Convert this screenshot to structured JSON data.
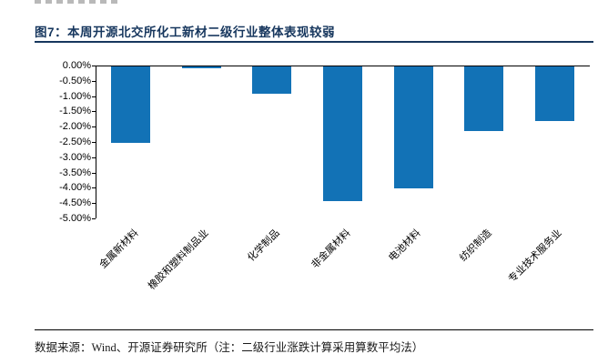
{
  "figure": {
    "title": "图7：本周开源北交所化工新材二级行业整体表现较弱"
  },
  "footer": {
    "source_note": "数据来源：Wind、开源证券研究所（注：二级行业涨跌计算采用算数平均法）"
  },
  "colors": {
    "accent_navy": "#17375E",
    "bar_blue": "#1272B6"
  },
  "chart_data": {
    "type": "bar",
    "title": "图7：本周开源北交所化工新材二级行业整体表现较弱",
    "categories": [
      "金属新材料",
      "橡胶和塑料制品业",
      "化学制品",
      "非金属材料",
      "电池材料",
      "纺织制造",
      "专业技术服务业"
    ],
    "values": [
      -2.5,
      -0.05,
      -0.9,
      -4.4,
      -4.0,
      -2.1,
      -1.8
    ],
    "unit": "%",
    "ylim": [
      0,
      -5.0
    ],
    "ytick_step": 0.5,
    "ytick_labels": [
      "0.00%",
      "-0.50%",
      "-1.00%",
      "-1.50%",
      "-2.00%",
      "-2.50%",
      "-3.00%",
      "-3.50%",
      "-4.00%",
      "-4.50%",
      "-5.00%"
    ],
    "bar_color": "#1272B6",
    "grid": false,
    "legend": false,
    "xlabel": "",
    "ylabel": ""
  }
}
